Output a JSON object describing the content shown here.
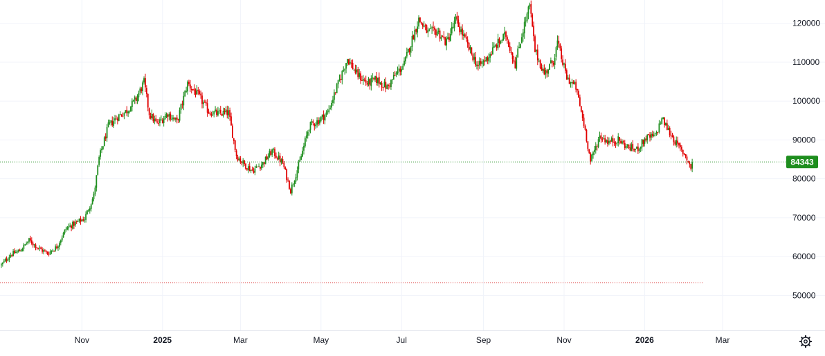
{
  "chart_data": {
    "type": "candlestick",
    "title": "",
    "xlabel": "",
    "ylabel": "",
    "ylim": [
      41000,
      126000
    ],
    "grid": true,
    "y_ticks": [
      50000,
      60000,
      70000,
      80000,
      90000,
      100000,
      110000,
      120000
    ],
    "y_tick_labels": [
      "50000",
      "60000",
      "70000",
      "80000",
      "90000",
      "100000",
      "110000",
      "120000"
    ],
    "x_ticks": [
      {
        "label": "Nov",
        "date": "2024-11-01",
        "bold": false
      },
      {
        "label": "2025",
        "date": "2025-01-01",
        "bold": true
      },
      {
        "label": "Mar",
        "date": "2025-03-01",
        "bold": false
      },
      {
        "label": "May",
        "date": "2025-05-01",
        "bold": false
      },
      {
        "label": "Jul",
        "date": "2025-07-01",
        "bold": false
      },
      {
        "label": "Sep",
        "date": "2025-09-01",
        "bold": false
      },
      {
        "label": "Nov",
        "date": "2025-11-01",
        "bold": false
      },
      {
        "label": "2026",
        "date": "2026-01-01",
        "bold": true
      },
      {
        "label": "Mar",
        "date": "2026-03-01",
        "bold": false
      }
    ],
    "x_range": [
      "2024-08-31",
      "2026-04-14"
    ],
    "price_trajectory": [
      [
        "2024-09-01",
        57800
      ],
      [
        "2024-09-08",
        60500
      ],
      [
        "2024-09-15",
        61500
      ],
      [
        "2024-09-22",
        64200
      ],
      [
        "2024-09-29",
        62200
      ],
      [
        "2024-10-06",
        60800
      ],
      [
        "2024-10-13",
        62500
      ],
      [
        "2024-10-20",
        67200
      ],
      [
        "2024-10-27",
        68600
      ],
      [
        "2024-11-03",
        69800
      ],
      [
        "2024-11-10",
        75600
      ],
      [
        "2024-11-14",
        85300
      ],
      [
        "2024-11-21",
        93500
      ],
      [
        "2024-11-28",
        96000
      ],
      [
        "2024-12-05",
        97500
      ],
      [
        "2024-12-12",
        100500
      ],
      [
        "2024-12-18",
        104800
      ],
      [
        "2024-12-22",
        96800
      ],
      [
        "2024-12-28",
        94000
      ],
      [
        "2025-01-05",
        96800
      ],
      [
        "2025-01-12",
        94600
      ],
      [
        "2025-01-20",
        104500
      ],
      [
        "2025-01-28",
        101500
      ],
      [
        "2025-02-05",
        97300
      ],
      [
        "2025-02-12",
        96700
      ],
      [
        "2025-02-20",
        97000
      ],
      [
        "2025-02-26",
        86000
      ],
      [
        "2025-03-03",
        84000
      ],
      [
        "2025-03-10",
        82100
      ],
      [
        "2025-03-18",
        84000
      ],
      [
        "2025-03-25",
        87200
      ],
      [
        "2025-04-02",
        84000
      ],
      [
        "2025-04-08",
        77000
      ],
      [
        "2025-04-15",
        84500
      ],
      [
        "2025-04-22",
        93500
      ],
      [
        "2025-04-29",
        95000
      ],
      [
        "2025-05-06",
        97000
      ],
      [
        "2025-05-13",
        103500
      ],
      [
        "2025-05-21",
        111000
      ],
      [
        "2025-05-28",
        107000
      ],
      [
        "2025-06-05",
        104500
      ],
      [
        "2025-06-12",
        105500
      ],
      [
        "2025-06-20",
        103500
      ],
      [
        "2025-06-27",
        107000
      ],
      [
        "2025-07-03",
        109500
      ],
      [
        "2025-07-10",
        117000
      ],
      [
        "2025-07-14",
        121000
      ],
      [
        "2025-07-21",
        117500
      ],
      [
        "2025-07-28",
        118000
      ],
      [
        "2025-08-04",
        115000
      ],
      [
        "2025-08-11",
        120800
      ],
      [
        "2025-08-15",
        118000
      ],
      [
        "2025-08-21",
        113500
      ],
      [
        "2025-08-28",
        108800
      ],
      [
        "2025-09-04",
        111200
      ],
      [
        "2025-09-11",
        114500
      ],
      [
        "2025-09-18",
        117000
      ],
      [
        "2025-09-25",
        109500
      ],
      [
        "2025-10-01",
        118500
      ],
      [
        "2025-10-06",
        124500
      ],
      [
        "2025-10-10",
        113000
      ],
      [
        "2025-10-17",
        107000
      ],
      [
        "2025-10-24",
        110500
      ],
      [
        "2025-10-27",
        115000
      ],
      [
        "2025-11-03",
        106000
      ],
      [
        "2025-11-10",
        103500
      ],
      [
        "2025-11-17",
        92500
      ],
      [
        "2025-11-21",
        84500
      ],
      [
        "2025-11-28",
        91000
      ],
      [
        "2025-12-05",
        89500
      ],
      [
        "2025-12-12",
        90000
      ],
      [
        "2025-12-19",
        88200
      ],
      [
        "2025-12-26",
        87500
      ],
      [
        "2026-01-02",
        90500
      ],
      [
        "2026-01-09",
        91000
      ],
      [
        "2026-01-14",
        95500
      ],
      [
        "2026-01-19",
        92500
      ],
      [
        "2026-01-26",
        88500
      ],
      [
        "2026-02-01",
        86000
      ],
      [
        "2026-02-05",
        82800
      ],
      [
        "2026-02-06",
        84343
      ]
    ],
    "last_price": 84343,
    "last_price_label": "84343",
    "reference_line_value": 53300,
    "colors": {
      "up": "#089981",
      "up_candle": "#1e8e1e",
      "down": "#e00000",
      "last_price": "#1e8e1e",
      "reference_line": "#e05050",
      "grid": "#f0f3fa",
      "text": "#131722",
      "background": "#ffffff"
    },
    "legend": "none"
  },
  "icons": {
    "settings": "gear-icon"
  }
}
